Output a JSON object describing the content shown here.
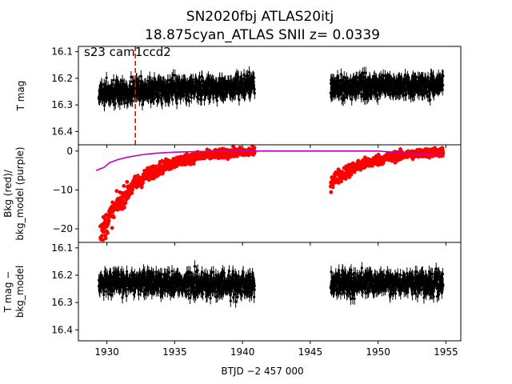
{
  "chart_data": {
    "type": "scatter",
    "title_line1": "SN2020fbj  ATLAS20itj",
    "title_line2": "18.875cyan_ATLAS SNII z= 0.0339",
    "xlabel": "BTJD −2 457 000",
    "x_ticks": [
      "1930",
      "1935",
      "1940",
      "1945",
      "1950",
      "1955"
    ],
    "x_tick_values": [
      1930,
      1935,
      1940,
      1945,
      1950,
      1955
    ],
    "xlim": [
      1927.9,
      1956.1
    ],
    "panels": [
      {
        "ylabel": "T mag",
        "ylim": [
          16.45,
          16.08
        ],
        "y_ticks": [
          "16.1",
          "16.2",
          "16.3",
          "16.4"
        ],
        "y_tick_values": [
          16.1,
          16.2,
          16.3,
          16.4
        ],
        "annotation": "s23 cam1ccd2",
        "vline_x": 1932.1,
        "series": [
          {
            "color": "#000000",
            "marker": "point-with-errorbar",
            "segments": [
              {
                "x_start": 1929.4,
                "x_end": 1940.9,
                "mean_start": 16.255,
                "mean_end": 16.225,
                "scatter": 0.035,
                "error": 0.022
              },
              {
                "x_start": 1946.5,
                "x_end": 1954.8,
                "mean_start": 16.235,
                "mean_end": 16.225,
                "scatter": 0.035,
                "error": 0.022
              }
            ]
          }
        ]
      },
      {
        "ylabel": "Bkg (red)/ bkg_model (purple)",
        "ylim": [
          -23.5,
          1.6
        ],
        "y_ticks": [
          "0",
          "−10",
          "−20"
        ],
        "y_tick_values": [
          0,
          -10,
          -20
        ],
        "series": [
          {
            "name": "Bkg",
            "color": "#ff0000",
            "marker": "dot",
            "segments": [
              {
                "x_start": 1929.5,
                "x_end": 1940.9,
                "start": -22.0,
                "end": 0.2,
                "tau": 2.8
              },
              {
                "x_start": 1946.5,
                "x_end": 1954.8,
                "start": -8.0,
                "end": 0.3,
                "tau": 3.0
              }
            ]
          },
          {
            "name": "bkg_model",
            "color": "#bf00bf",
            "marker": "line",
            "points": [
              [
                1929.2,
                -5.0
              ],
              [
                1929.8,
                -4.2
              ],
              [
                1930.2,
                -3.0
              ],
              [
                1930.8,
                -2.2
              ],
              [
                1931.5,
                -1.6
              ],
              [
                1932.5,
                -1.0
              ],
              [
                1933.5,
                -0.6
              ],
              [
                1935,
                -0.3
              ],
              [
                1937,
                -0.1
              ],
              [
                1940.9,
                0.0
              ],
              [
                1946.5,
                0.0
              ],
              [
                1950,
                0.0
              ],
              [
                1952,
                -0.5
              ],
              [
                1953.5,
                -0.9
              ],
              [
                1954.8,
                -1.0
              ]
            ]
          }
        ]
      },
      {
        "ylabel": "T mag − bkg_model",
        "ylim": [
          16.44,
          16.08
        ],
        "y_ticks": [
          "16.1",
          "16.2",
          "16.3",
          "16.4"
        ],
        "y_tick_values": [
          16.1,
          16.2,
          16.3,
          16.4
        ],
        "series": [
          {
            "color": "#000000",
            "marker": "point-with-errorbar",
            "segments": [
              {
                "x_start": 1929.4,
                "x_end": 1940.9,
                "mean_start": 16.225,
                "mean_end": 16.235,
                "scatter": 0.035,
                "error": 0.022
              },
              {
                "x_start": 1946.5,
                "x_end": 1954.8,
                "mean_start": 16.23,
                "mean_end": 16.23,
                "scatter": 0.035,
                "error": 0.022
              }
            ]
          }
        ]
      }
    ]
  }
}
